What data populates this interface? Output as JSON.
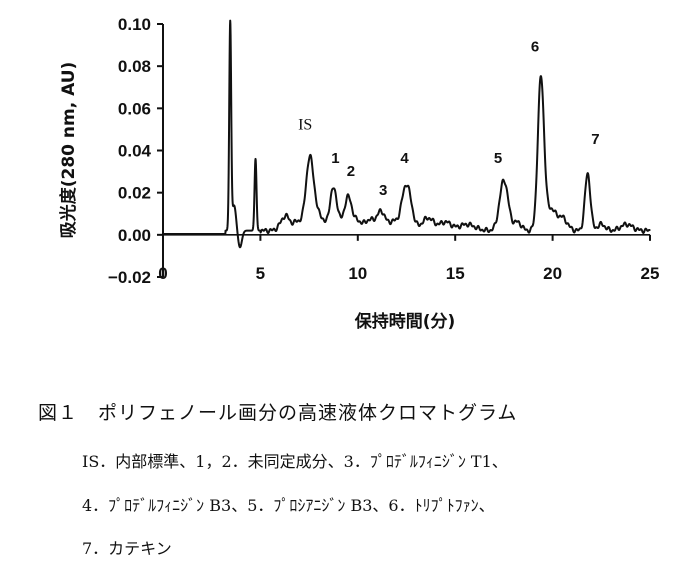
{
  "chart_data": {
    "type": "line",
    "xlabel": "保持時間(分)",
    "ylabel": "吸光度(280 nm, AU)",
    "xlim": [
      0,
      25
    ],
    "ylim": [
      -0.02,
      0.1
    ],
    "x_ticks": [
      "0",
      "5",
      "10",
      "15",
      "20",
      "25"
    ],
    "y_ticks": [
      "0.10",
      "0.08",
      "0.06",
      "0.04",
      "0.02",
      "0.00",
      "−0.02"
    ],
    "grid": false,
    "baseline": 0.002,
    "peaks": [
      {
        "t": 3.45,
        "h": 0.098,
        "w": 0.05
      },
      {
        "t": 3.65,
        "h": 0.012,
        "w": 0.1
      },
      {
        "t": 3.95,
        "h": -0.008,
        "w": 0.1
      },
      {
        "t": 4.75,
        "h": 0.034,
        "w": 0.05
      },
      {
        "t": 6.3,
        "h": 0.007,
        "w": 0.25
      },
      {
        "t": 6.9,
        "h": 0.004,
        "w": 0.15
      },
      {
        "t": 7.55,
        "h": 0.035,
        "w": 0.22
      },
      {
        "t": 8.1,
        "h": 0.006,
        "w": 0.15
      },
      {
        "t": 8.75,
        "h": 0.02,
        "w": 0.2
      },
      {
        "t": 9.5,
        "h": 0.016,
        "w": 0.2
      },
      {
        "t": 10.0,
        "h": 0.004,
        "w": 0.2
      },
      {
        "t": 10.6,
        "h": 0.005,
        "w": 0.25
      },
      {
        "t": 11.2,
        "h": 0.009,
        "w": 0.22
      },
      {
        "t": 11.8,
        "h": 0.004,
        "w": 0.2
      },
      {
        "t": 12.5,
        "h": 0.022,
        "w": 0.25
      },
      {
        "t": 13.6,
        "h": 0.006,
        "w": 0.3
      },
      {
        "t": 14.5,
        "h": 0.004,
        "w": 0.3
      },
      {
        "t": 15.6,
        "h": 0.003,
        "w": 0.4
      },
      {
        "t": 17.5,
        "h": 0.024,
        "w": 0.22
      },
      {
        "t": 18.2,
        "h": 0.004,
        "w": 0.2
      },
      {
        "t": 19.4,
        "h": 0.072,
        "w": 0.16
      },
      {
        "t": 19.9,
        "h": 0.01,
        "w": 0.25
      },
      {
        "t": 20.5,
        "h": 0.006,
        "w": 0.25
      },
      {
        "t": 21.8,
        "h": 0.027,
        "w": 0.14
      },
      {
        "t": 22.5,
        "h": 0.003,
        "w": 0.2
      },
      {
        "t": 23.8,
        "h": 0.003,
        "w": 0.3
      }
    ],
    "annotations": [
      {
        "text": "IS",
        "t": 7.3,
        "y": 0.05
      },
      {
        "text": "1",
        "t": 8.85,
        "y": 0.034
      },
      {
        "text": "2",
        "t": 9.65,
        "y": 0.028
      },
      {
        "text": "3",
        "t": 11.3,
        "y": 0.019
      },
      {
        "text": "4",
        "t": 12.4,
        "y": 0.034
      },
      {
        "text": "5",
        "t": 17.2,
        "y": 0.034
      },
      {
        "text": "6",
        "t": 19.1,
        "y": 0.087
      },
      {
        "text": "7",
        "t": 22.2,
        "y": 0.043
      }
    ],
    "line_color": "#111111"
  },
  "caption": {
    "title": "図１　ポリフェノール画分の高速液体クロマトグラム",
    "line1": "IS．内部標準、1，2．未同定成分、3．ﾌﾟﾛﾃﾞﾙﾌｨﾆｼﾞﾝ T1、",
    "line2": "4．ﾌﾟﾛﾃﾞﾙﾌｨﾆｼﾞﾝ B3、5．ﾌﾟﾛｼｱﾆｼﾞﾝ B3、6．ﾄﾘﾌﾟﾄﾌｧﾝ、",
    "line3": "7．カテキン"
  }
}
